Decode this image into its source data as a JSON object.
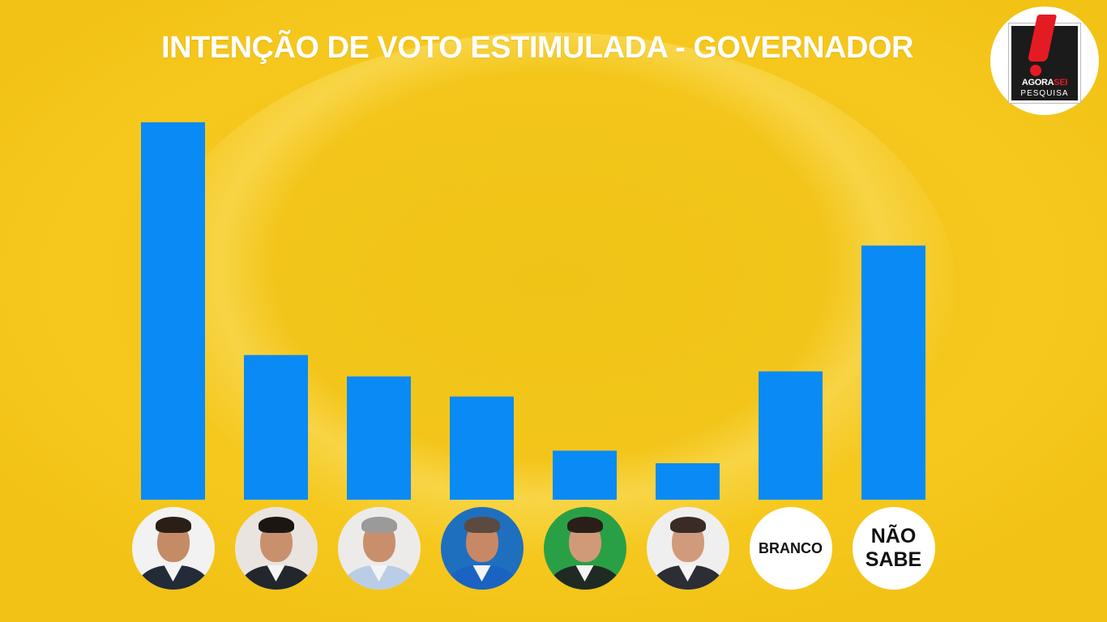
{
  "header": {
    "title": "INTENÇÃO DE VOTO ESTIMULADA - GOVERNADOR"
  },
  "logo": {
    "line1_a": "AGORA",
    "line1_b": "SEI",
    "line2": "PESQUISA",
    "accent": "#e51b24"
  },
  "chart_data": {
    "type": "bar",
    "title": "INTENÇÃO DE VOTO ESTIMULADA - GOVERNADOR",
    "xlabel": "",
    "ylabel": "",
    "grid": false,
    "bar_color": "#0a8af5",
    "categories": [
      "",
      "",
      "",
      "",
      "",
      "",
      "BRANCO",
      "NÃO SABE"
    ],
    "values": [
      30,
      11.5,
      9.8,
      8.2,
      3.9,
      2.9,
      10.2,
      20.2
    ],
    "ylim": [
      0,
      30
    ]
  },
  "candidates": [
    {
      "bg": "#f2f2f2",
      "body": "#232a38",
      "hair": "#2a1f18",
      "skin": "#c58a66"
    },
    {
      "bg": "#e9e4df",
      "body": "#23262c",
      "hair": "#1c1612",
      "skin": "#c9906e"
    },
    {
      "bg": "#ecebe9",
      "body": "#b9cde6",
      "hair": "#9a9a9a",
      "skin": "#c98e6c"
    },
    {
      "bg": "#1f6fbf",
      "body": "#1b63c2",
      "hair": "#5a4a40",
      "skin": "#c88866"
    },
    {
      "bg": "#2aa046",
      "body": "#1f2b22",
      "hair": "#2a1f18",
      "skin": "#d09a78"
    },
    {
      "bg": "#efefef",
      "body": "#2b2e35",
      "hair": "#3a2c24",
      "skin": "#d19a7c"
    }
  ]
}
